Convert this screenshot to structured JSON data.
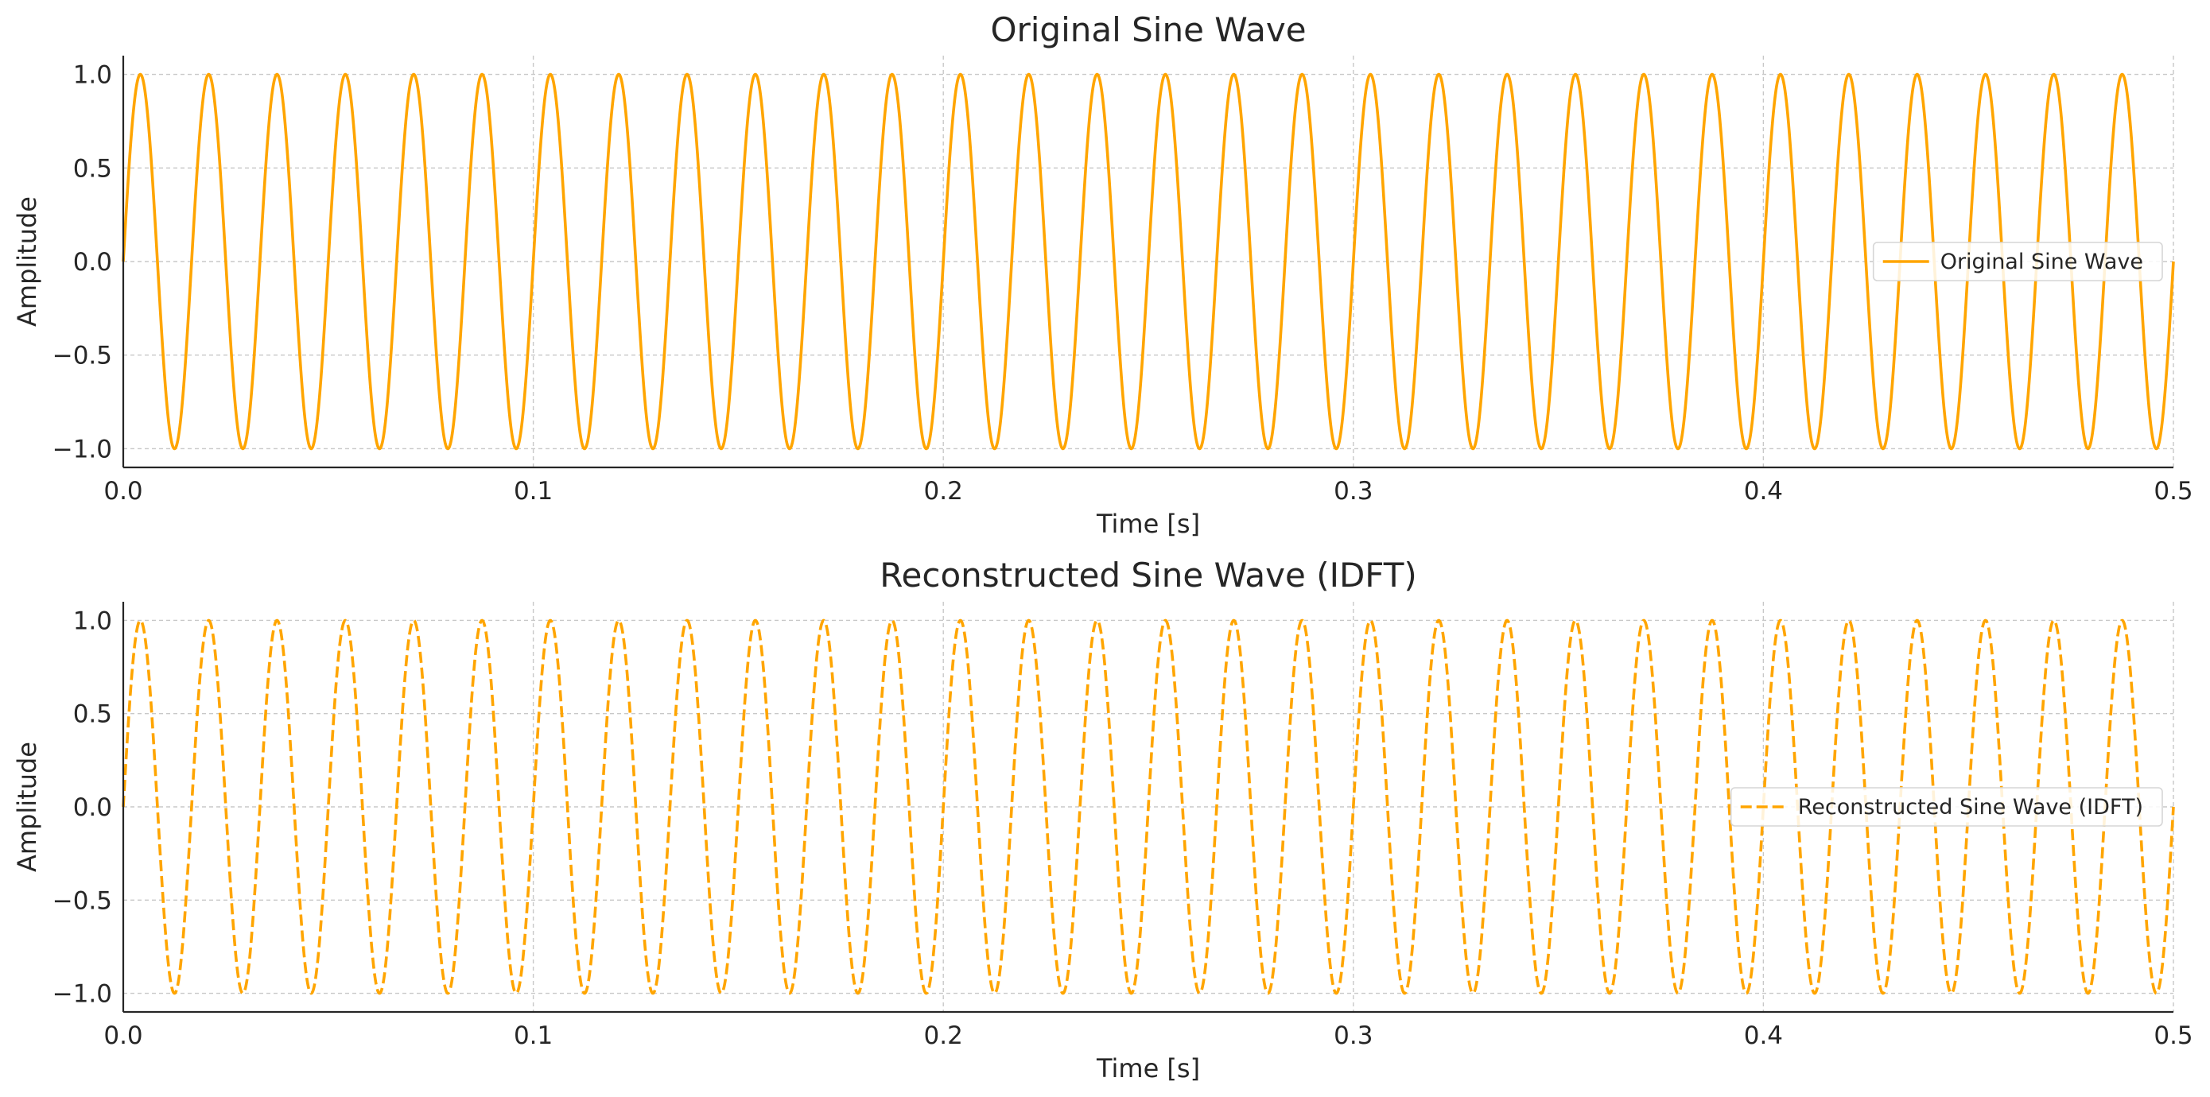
{
  "figure": {
    "background": "#ffffff",
    "axis_color": "#262626",
    "grid_color": "#c8c8c8",
    "line_color": "#FFA500"
  },
  "chart_data": [
    {
      "type": "line",
      "title": "Original Sine Wave",
      "xlabel": "Time [s]",
      "ylabel": "Amplitude",
      "xlim": [
        0,
        0.5
      ],
      "ylim": [
        -1.1,
        1.1
      ],
      "xticks": [
        0.0,
        0.1,
        0.2,
        0.3,
        0.4,
        0.5
      ],
      "xtick_labels": [
        "0.0",
        "0.1",
        "0.2",
        "0.3",
        "0.4",
        "0.5"
      ],
      "yticks": [
        -1.0,
        -0.5,
        0.0,
        0.5,
        1.0
      ],
      "ytick_labels": [
        "−1.0",
        "−0.5",
        "0.0",
        "0.5",
        "1.0"
      ],
      "grid": true,
      "legend_position": "center-right",
      "series": [
        {
          "name": "Original Sine Wave",
          "function": "sin",
          "amplitude": 1.0,
          "frequency_hz": 60,
          "x_start": 0.0,
          "x_end": 0.5,
          "style": "solid",
          "color": "#FFA500"
        }
      ]
    },
    {
      "type": "line",
      "title": "Reconstructed Sine Wave (IDFT)",
      "xlabel": "Time [s]",
      "ylabel": "Amplitude",
      "xlim": [
        0,
        0.5
      ],
      "ylim": [
        -1.1,
        1.1
      ],
      "xticks": [
        0.0,
        0.1,
        0.2,
        0.3,
        0.4,
        0.5
      ],
      "xtick_labels": [
        "0.0",
        "0.1",
        "0.2",
        "0.3",
        "0.4",
        "0.5"
      ],
      "yticks": [
        -1.0,
        -0.5,
        0.0,
        0.5,
        1.0
      ],
      "ytick_labels": [
        "−1.0",
        "−0.5",
        "0.0",
        "0.5",
        "1.0"
      ],
      "grid": true,
      "legend_position": "center-right",
      "series": [
        {
          "name": "Reconstructed Sine Wave (IDFT)",
          "function": "sin",
          "amplitude": 1.0,
          "frequency_hz": 60,
          "x_start": 0.0,
          "x_end": 0.5,
          "style": "dashed",
          "color": "#FFA500"
        }
      ]
    }
  ]
}
